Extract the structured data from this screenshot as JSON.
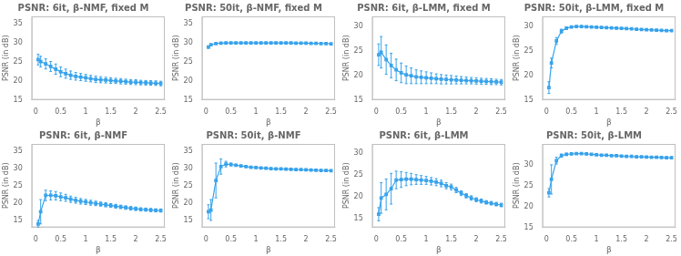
{
  "chart_data": [
    {
      "type": "line",
      "title": "PSNR: 6it, β-NMF, fixed M",
      "xlabel": "β",
      "ylabel": "PSNR (in dB)",
      "x": [
        0.05,
        0.1,
        0.2,
        0.3,
        0.4,
        0.5,
        0.6,
        0.7,
        0.8,
        0.9,
        1.0,
        1.1,
        1.2,
        1.3,
        1.4,
        1.5,
        1.6,
        1.7,
        1.8,
        1.9,
        2.0,
        2.1,
        2.2,
        2.3,
        2.4,
        2.5
      ],
      "values": [
        25.6,
        25.1,
        24.5,
        23.8,
        23.1,
        22.4,
        21.9,
        21.5,
        21.2,
        21.0,
        20.8,
        20.6,
        20.4,
        20.3,
        20.2,
        20.1,
        20.0,
        19.9,
        19.8,
        19.7,
        19.65,
        19.55,
        19.5,
        19.45,
        19.4,
        19.3
      ],
      "errors": [
        1.4,
        1.4,
        1.35,
        1.3,
        1.35,
        1.3,
        1.2,
        1.1,
        1.0,
        0.95,
        0.9,
        0.85,
        0.85,
        0.8,
        0.75,
        0.75,
        0.7,
        0.7,
        0.65,
        0.65,
        0.65,
        0.6,
        0.6,
        0.6,
        0.6,
        0.6
      ],
      "marker": "square",
      "grid": false,
      "xlim": [
        -0.08,
        2.58
      ],
      "xticks": [
        0,
        0.5,
        1,
        1.5,
        2,
        2.5
      ],
      "ylim": [
        15,
        37
      ],
      "yticks": [
        15,
        20,
        25,
        30,
        35
      ]
    },
    {
      "type": "line",
      "title": "PSNR: 50it, β-NMF, fixed M",
      "xlabel": "β",
      "ylabel": "PSNR (in dB)",
      "x": [
        0.05,
        0.1,
        0.2,
        0.3,
        0.4,
        0.5,
        0.6,
        0.7,
        0.8,
        0.9,
        1.0,
        1.1,
        1.2,
        1.3,
        1.4,
        1.5,
        1.6,
        1.7,
        1.8,
        1.9,
        2.0,
        2.1,
        2.2,
        2.3,
        2.4,
        2.5
      ],
      "values": [
        28.9,
        29.5,
        29.85,
        29.95,
        30.0,
        30.0,
        30.0,
        30.0,
        30.0,
        30.0,
        30.0,
        30.0,
        30.0,
        30.0,
        30.0,
        30.0,
        30.0,
        30.0,
        29.95,
        29.95,
        29.95,
        29.9,
        29.9,
        29.85,
        29.85,
        29.75
      ],
      "errors": [
        0.3,
        0.2,
        0.15,
        0.1,
        0.08,
        0.07,
        0.07,
        0.07,
        0.07,
        0.07,
        0.07,
        0.07,
        0.07,
        0.07,
        0.07,
        0.07,
        0.07,
        0.07,
        0.07,
        0.07,
        0.07,
        0.07,
        0.07,
        0.07,
        0.07,
        0.07
      ],
      "marker": "square",
      "grid": false,
      "xlim": [
        -0.08,
        2.58
      ],
      "xticks": [
        0,
        0.5,
        1,
        1.5,
        2,
        2.5
      ],
      "ylim": [
        15,
        37
      ],
      "yticks": [
        15,
        20,
        25,
        30,
        35
      ]
    },
    {
      "type": "line",
      "title": "PSNR: 6it, β-LMM, fixed M",
      "xlabel": "β",
      "ylabel": "PSNR (in dB)",
      "x": [
        0.05,
        0.1,
        0.2,
        0.3,
        0.4,
        0.5,
        0.6,
        0.7,
        0.8,
        0.9,
        1.0,
        1.1,
        1.2,
        1.3,
        1.4,
        1.5,
        1.6,
        1.7,
        1.8,
        1.9,
        2.0,
        2.1,
        2.2,
        2.3,
        2.4,
        2.5
      ],
      "values": [
        24.2,
        24.7,
        23.2,
        22.0,
        21.1,
        20.5,
        20.1,
        19.9,
        19.7,
        19.6,
        19.5,
        19.4,
        19.3,
        19.2,
        19.15,
        19.1,
        19.05,
        19.0,
        18.95,
        18.9,
        18.85,
        18.8,
        18.75,
        18.7,
        18.65,
        18.6
      ],
      "errors": [
        2.2,
        3.2,
        3.0,
        2.5,
        2.2,
        2.0,
        1.8,
        1.6,
        1.4,
        1.3,
        1.2,
        1.1,
        1.0,
        0.95,
        0.9,
        0.85,
        0.8,
        0.75,
        0.7,
        0.65,
        0.65,
        0.6,
        0.6,
        0.6,
        0.55,
        0.55
      ],
      "marker": "square",
      "grid": false,
      "xlim": [
        -0.08,
        2.58
      ],
      "xticks": [
        0,
        0.5,
        1,
        1.5,
        2,
        2.5
      ],
      "ylim": [
        15,
        32
      ],
      "yticks": [
        15,
        20,
        25,
        30
      ]
    },
    {
      "type": "line",
      "title": "PSNR: 50it, β-LMM, fixed M",
      "xlabel": "β",
      "ylabel": "PSNR (in dB)",
      "x": [
        0.05,
        0.1,
        0.2,
        0.3,
        0.4,
        0.5,
        0.6,
        0.7,
        0.8,
        0.9,
        1.0,
        1.1,
        1.2,
        1.3,
        1.4,
        1.5,
        1.6,
        1.7,
        1.8,
        1.9,
        2.0,
        2.1,
        2.2,
        2.3,
        2.4,
        2.5
      ],
      "values": [
        17.5,
        22.5,
        27.0,
        29.0,
        29.6,
        29.85,
        29.95,
        29.95,
        29.9,
        29.85,
        29.8,
        29.75,
        29.7,
        29.65,
        29.6,
        29.55,
        29.5,
        29.45,
        29.4,
        29.35,
        29.3,
        29.25,
        29.2,
        29.15,
        29.1,
        29.1
      ],
      "errors": [
        1.2,
        1.0,
        0.7,
        0.4,
        0.25,
        0.15,
        0.12,
        0.12,
        0.12,
        0.12,
        0.12,
        0.12,
        0.12,
        0.12,
        0.12,
        0.12,
        0.12,
        0.12,
        0.12,
        0.12,
        0.12,
        0.12,
        0.12,
        0.12,
        0.12,
        0.12
      ],
      "marker": "square",
      "grid": false,
      "xlim": [
        -0.08,
        2.58
      ],
      "xticks": [
        0,
        0.5,
        1,
        1.5,
        2,
        2.5
      ],
      "ylim": [
        15,
        32
      ],
      "yticks": [
        15,
        20,
        25,
        30
      ]
    },
    {
      "type": "line",
      "title": "PSNR: 6it, β-NMF",
      "xlabel": "β",
      "ylabel": "PSNR (in dB)",
      "x": [
        0.05,
        0.1,
        0.2,
        0.3,
        0.4,
        0.5,
        0.6,
        0.7,
        0.8,
        0.9,
        1.0,
        1.1,
        1.2,
        1.3,
        1.4,
        1.5,
        1.6,
        1.7,
        1.8,
        1.9,
        2.0,
        2.1,
        2.2,
        2.3,
        2.4,
        2.5
      ],
      "values": [
        14.0,
        17.5,
        22.2,
        22.2,
        22.1,
        21.8,
        21.5,
        21.1,
        20.8,
        20.5,
        20.3,
        20.1,
        19.9,
        19.7,
        19.5,
        19.3,
        19.1,
        18.9,
        18.7,
        18.5,
        18.35,
        18.2,
        18.1,
        18.0,
        17.9,
        17.85
      ],
      "errors": [
        1.0,
        3.5,
        1.5,
        1.3,
        1.2,
        1.1,
        1.0,
        0.9,
        0.85,
        0.8,
        0.75,
        0.7,
        0.65,
        0.6,
        0.6,
        0.55,
        0.55,
        0.5,
        0.5,
        0.5,
        0.5,
        0.45,
        0.45,
        0.45,
        0.45,
        0.45
      ],
      "marker": "square",
      "grid": false,
      "xlim": [
        -0.08,
        2.58
      ],
      "xticks": [
        0,
        0.5,
        1,
        1.5,
        2,
        2.5
      ],
      "ylim": [
        13,
        37
      ],
      "yticks": [
        15,
        20,
        25,
        30,
        35
      ]
    },
    {
      "type": "line",
      "title": "PSNR: 50it, β-NMF",
      "xlabel": "β",
      "ylabel": "PSNR (in dB)",
      "x": [
        0.05,
        0.1,
        0.2,
        0.3,
        0.4,
        0.5,
        0.6,
        0.7,
        0.8,
        0.9,
        1.0,
        1.1,
        1.2,
        1.3,
        1.4,
        1.5,
        1.6,
        1.7,
        1.8,
        1.9,
        2.0,
        2.1,
        2.2,
        2.3,
        2.4,
        2.5
      ],
      "values": [
        17.5,
        18.0,
        26.5,
        30.5,
        31.2,
        31.1,
        30.9,
        30.7,
        30.5,
        30.3,
        30.2,
        30.1,
        30.0,
        29.9,
        29.85,
        29.8,
        29.75,
        29.7,
        29.65,
        29.6,
        29.55,
        29.5,
        29.45,
        29.4,
        29.35,
        29.3
      ],
      "errors": [
        2.0,
        3.0,
        5.0,
        2.2,
        0.8,
        0.4,
        0.25,
        0.2,
        0.18,
        0.18,
        0.18,
        0.18,
        0.18,
        0.18,
        0.18,
        0.18,
        0.18,
        0.18,
        0.18,
        0.18,
        0.18,
        0.18,
        0.18,
        0.18,
        0.18,
        0.18
      ],
      "marker": "square",
      "grid": false,
      "xlim": [
        -0.08,
        2.58
      ],
      "xticks": [
        0,
        0.5,
        1,
        1.5,
        2,
        2.5
      ],
      "ylim": [
        13,
        37
      ],
      "yticks": [
        15,
        20,
        25,
        30,
        35
      ]
    },
    {
      "type": "line",
      "title": "PSNR: 6it, β-LMM",
      "xlabel": "β",
      "ylabel": "PSNR (in dB)",
      "x": [
        0.05,
        0.1,
        0.2,
        0.3,
        0.4,
        0.5,
        0.6,
        0.7,
        0.8,
        0.9,
        1.0,
        1.1,
        1.2,
        1.3,
        1.4,
        1.5,
        1.6,
        1.7,
        1.8,
        1.9,
        2.0,
        2.1,
        2.2,
        2.3,
        2.4,
        2.5
      ],
      "values": [
        16.0,
        19.7,
        20.5,
        21.8,
        23.8,
        23.9,
        24.0,
        24.0,
        23.9,
        23.8,
        23.7,
        23.5,
        23.3,
        23.0,
        22.5,
        22.2,
        21.5,
        20.8,
        20.2,
        19.7,
        19.3,
        19.0,
        18.7,
        18.5,
        18.3,
        18.1
      ],
      "errors": [
        1.5,
        3.5,
        3.5,
        3.5,
        2.0,
        1.8,
        1.5,
        1.3,
        1.1,
        1.0,
        0.9,
        0.85,
        0.8,
        0.75,
        0.7,
        0.65,
        0.6,
        0.55,
        0.5,
        0.5,
        0.45,
        0.45,
        0.4,
        0.4,
        0.4,
        0.4
      ],
      "marker": "square",
      "grid": false,
      "xlim": [
        -0.08,
        2.58
      ],
      "xticks": [
        0,
        0.5,
        1,
        1.5,
        2,
        2.5
      ],
      "ylim": [
        13,
        32
      ],
      "yticks": [
        15,
        20,
        25,
        30
      ]
    },
    {
      "type": "line",
      "title": "PSNR: 50it, β-LMM",
      "xlabel": "β",
      "ylabel": "PSNR (in dB)",
      "x": [
        0.05,
        0.1,
        0.2,
        0.3,
        0.4,
        0.5,
        0.6,
        0.7,
        0.8,
        0.9,
        1.0,
        1.1,
        1.2,
        1.3,
        1.4,
        1.5,
        1.6,
        1.7,
        1.8,
        1.9,
        2.0,
        2.1,
        2.2,
        2.3,
        2.4,
        2.5
      ],
      "values": [
        23.3,
        26.5,
        31.0,
        32.2,
        32.5,
        32.6,
        32.7,
        32.7,
        32.6,
        32.5,
        32.4,
        32.3,
        32.3,
        32.2,
        32.2,
        32.1,
        32.0,
        32.0,
        31.9,
        31.9,
        31.85,
        31.8,
        31.8,
        31.75,
        31.7,
        31.7
      ],
      "errors": [
        1.0,
        3.5,
        0.8,
        0.4,
        0.25,
        0.2,
        0.18,
        0.18,
        0.18,
        0.18,
        0.18,
        0.18,
        0.18,
        0.18,
        0.18,
        0.18,
        0.18,
        0.18,
        0.18,
        0.18,
        0.18,
        0.18,
        0.18,
        0.18,
        0.18,
        0.18
      ],
      "marker": "square",
      "grid": false,
      "xlim": [
        -0.08,
        2.58
      ],
      "xticks": [
        0,
        0.5,
        1,
        1.5,
        2,
        2.5
      ],
      "ylim": [
        15,
        35
      ],
      "yticks": [
        15,
        20,
        25,
        30
      ]
    }
  ]
}
